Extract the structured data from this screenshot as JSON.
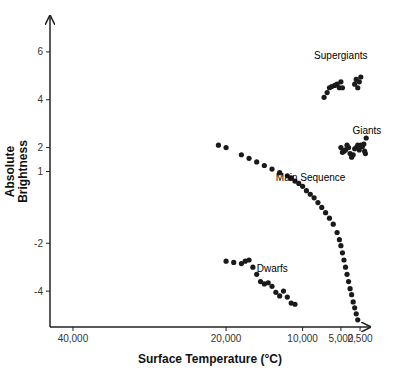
{
  "chart_data": {
    "type": "scatter",
    "xlabel": "Surface Temperature (°C)",
    "ylabel": "Absolute\nBrightness",
    "xlim": [
      43000,
      1200
    ],
    "ylim": [
      -5.5,
      7.5
    ],
    "xticks": [
      {
        "value": 40000,
        "label": "40,000"
      },
      {
        "value": 20000,
        "label": "20,000"
      },
      {
        "value": 10000,
        "label": "10,000"
      },
      {
        "value": 5000,
        "label": "5,000"
      },
      {
        "value": 2500,
        "label": "2,500"
      }
    ],
    "yticks": [
      -4,
      -2,
      1,
      2,
      4,
      6
    ],
    "grid": false,
    "annotations": [
      {
        "text": "Supergiants",
        "x": 8500,
        "y": 5.7
      },
      {
        "text": "Giants",
        "x": 3500,
        "y": 2.55
      },
      {
        "text": "Main Sequence",
        "x": 13500,
        "y": 0.6
      },
      {
        "text": "Dwarfs",
        "x": 16000,
        "y": -3.2
      }
    ],
    "series": [
      {
        "color": "#1a1a1a",
        "x": [
          21000,
          20000,
          18000,
          17000,
          16000,
          15000,
          14000,
          13000,
          12000,
          11500,
          11000,
          10500,
          10000,
          9500,
          9000,
          8500,
          8000,
          7500,
          7000,
          6500,
          6000,
          5500,
          5200,
          5000,
          4800,
          4600,
          4400,
          4200,
          4000,
          3800,
          3600,
          3400,
          3200,
          3000,
          2800
        ],
        "values": [
          2.1,
          2.0,
          1.7,
          1.55,
          1.4,
          1.25,
          1.1,
          0.95,
          0.82,
          0.72,
          0.6,
          0.5,
          0.38,
          0.2,
          0.05,
          -0.1,
          -0.3,
          -0.5,
          -0.72,
          -0.95,
          -1.2,
          -1.55,
          -1.85,
          -2.1,
          -2.4,
          -2.7,
          -3.0,
          -3.3,
          -3.6,
          -3.9,
          -4.15,
          -4.45,
          -4.7,
          -4.95,
          -5.2
        ]
      },
      {
        "color": "#1a1a1a",
        "x": [
          7200,
          6800,
          6500,
          6200,
          5800,
          5500,
          5200,
          5000,
          4800,
          3200,
          3000,
          2800,
          2600,
          2400
        ],
        "values": [
          4.1,
          4.3,
          4.5,
          4.55,
          4.6,
          4.65,
          4.5,
          4.75,
          4.5,
          4.65,
          4.85,
          4.5,
          4.75,
          4.95
        ]
      },
      {
        "color": "#1a1a1a",
        "x": [
          5000,
          4800,
          4600,
          4400,
          4200,
          4000,
          3800,
          3600,
          3400,
          3200,
          3000,
          2800,
          2600,
          2400,
          2200,
          2000,
          1900,
          1800,
          1700
        ],
        "values": [
          2.0,
          1.8,
          1.85,
          1.9,
          2.1,
          2.0,
          1.75,
          1.6,
          1.7,
          1.95,
          2.0,
          2.1,
          1.9,
          2.1,
          2.05,
          2.15,
          1.85,
          1.75,
          2.4
        ]
      },
      {
        "color": "#1a1a1a",
        "x": [
          20000,
          19000,
          18000,
          17500,
          17000,
          16500,
          16000,
          15500,
          15000,
          14500,
          14000,
          13500,
          13000,
          12500,
          12000,
          11500,
          11000
        ],
        "values": [
          -2.75,
          -2.8,
          -2.85,
          -2.75,
          -2.7,
          -3.0,
          -3.3,
          -3.6,
          -3.7,
          -3.65,
          -3.8,
          -4.05,
          -4.2,
          -4.0,
          -4.25,
          -4.5,
          -4.55
        ]
      }
    ]
  }
}
